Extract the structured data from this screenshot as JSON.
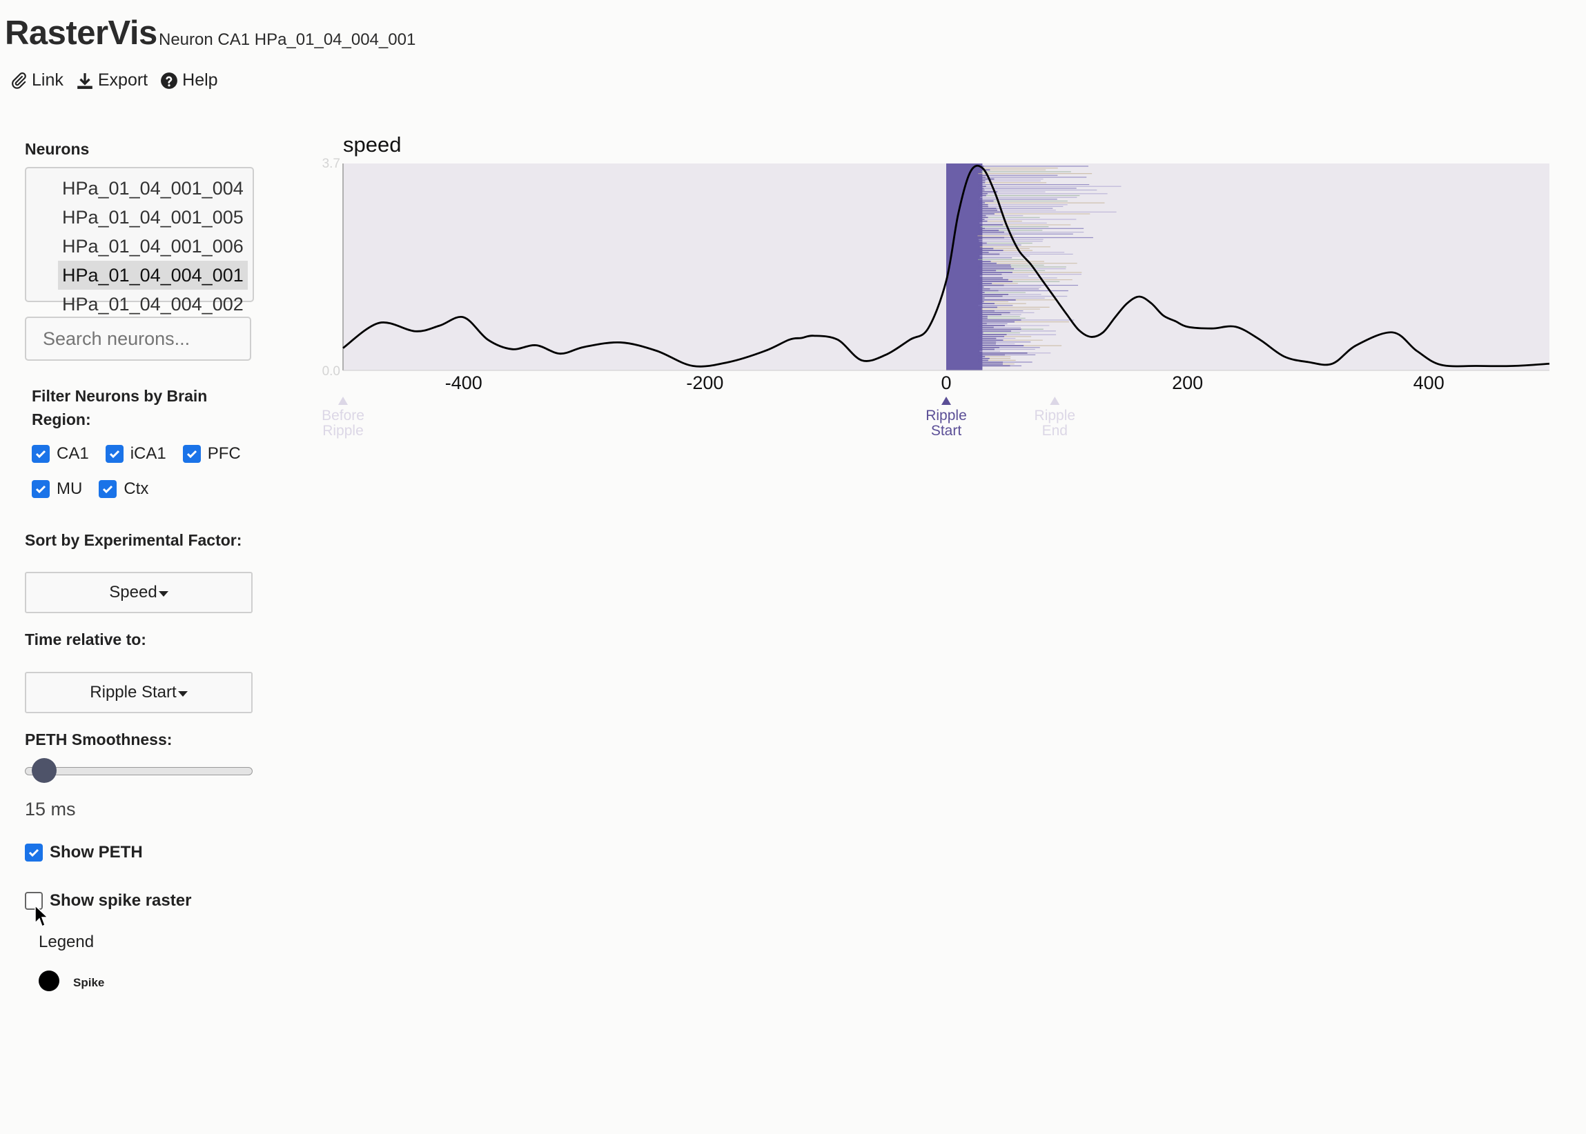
{
  "header": {
    "title": "RasterVis",
    "subtitle": "Neuron CA1 HPa_01_04_004_001"
  },
  "toolbar": {
    "link_label": "Link",
    "export_label": "Export",
    "help_label": "Help"
  },
  "sidebar": {
    "neurons_label": "Neurons",
    "neurons": [
      {
        "label": "HPa_01_04_001_004",
        "selected": false
      },
      {
        "label": "HPa_01_04_001_005",
        "selected": false
      },
      {
        "label": "HPa_01_04_001_006",
        "selected": false
      },
      {
        "label": "HPa_01_04_004_001",
        "selected": true
      },
      {
        "label": "HPa_01_04_004_002",
        "selected": false
      }
    ],
    "search_placeholder": "Search neurons...",
    "region_filter_label": "Filter Neurons by Brain Region:",
    "regions": [
      {
        "label": "CA1",
        "checked": true
      },
      {
        "label": "iCA1",
        "checked": true
      },
      {
        "label": "PFC",
        "checked": true
      },
      {
        "label": "MU",
        "checked": true
      },
      {
        "label": "Ctx",
        "checked": true
      }
    ],
    "sort_label": "Sort by Experimental Factor:",
    "sort_value": "Speed",
    "time_label": "Time relative to:",
    "time_value": "Ripple Start",
    "smoothness_label": "PETH Smoothness:",
    "smoothness_value": "15 ms",
    "smoothness_fraction": 0.02,
    "show_peth_label": "Show PETH",
    "show_peth": true,
    "show_raster_label": "Show spike raster",
    "show_raster": false,
    "legend_title": "Legend",
    "legend_spike_label": "Spike"
  },
  "colors": {
    "accent": "#1a73e8",
    "ripple_band": "#6b5fa8",
    "chart_bg": "#ebe8ee",
    "peth_line": "#000000",
    "marker_active": "#5b4f96",
    "marker_inactive": "#dcd7e6"
  },
  "chart_data": {
    "type": "line",
    "title": "speed",
    "xlim": [
      -500,
      500
    ],
    "ylim": [
      0.0,
      3.7
    ],
    "y_ticks": [
      "3.7",
      "0.0"
    ],
    "x_ticks": [
      -400,
      -200,
      0,
      200,
      400
    ],
    "ripple_band": [
      0,
      30
    ],
    "markers": [
      {
        "label": "Before Ripple",
        "x": -500,
        "active": false
      },
      {
        "label": "Ripple Start",
        "x": 0,
        "active": true
      },
      {
        "label": "Ripple End",
        "x": 90,
        "active": false
      }
    ],
    "series": [
      {
        "x": [
          -500,
          -470,
          -440,
          -420,
          -400,
          -380,
          -360,
          -340,
          -320,
          -300,
          -270,
          -240,
          -210,
          -180,
          -150,
          -130,
          -120,
          -110,
          -90,
          -70,
          -50,
          -30,
          -15,
          0,
          10,
          20,
          30,
          40,
          50,
          60,
          70,
          80,
          90,
          100,
          110,
          120,
          130,
          140,
          150,
          160,
          170,
          180,
          190,
          200,
          220,
          240,
          260,
          280,
          300,
          320,
          340,
          370,
          390,
          410,
          440,
          470,
          500
        ],
        "y": [
          0.4,
          0.85,
          0.7,
          0.8,
          0.95,
          0.55,
          0.38,
          0.45,
          0.3,
          0.42,
          0.5,
          0.35,
          0.08,
          0.15,
          0.35,
          0.55,
          0.58,
          0.62,
          0.55,
          0.18,
          0.28,
          0.55,
          0.75,
          1.6,
          2.8,
          3.55,
          3.62,
          3.2,
          2.6,
          2.15,
          1.9,
          1.6,
          1.3,
          1.0,
          0.72,
          0.6,
          0.68,
          0.95,
          1.2,
          1.32,
          1.2,
          0.98,
          0.88,
          0.78,
          0.75,
          0.78,
          0.55,
          0.25,
          0.15,
          0.12,
          0.45,
          0.68,
          0.35,
          0.1,
          0.08,
          0.08,
          0.12
        ]
      }
    ]
  }
}
